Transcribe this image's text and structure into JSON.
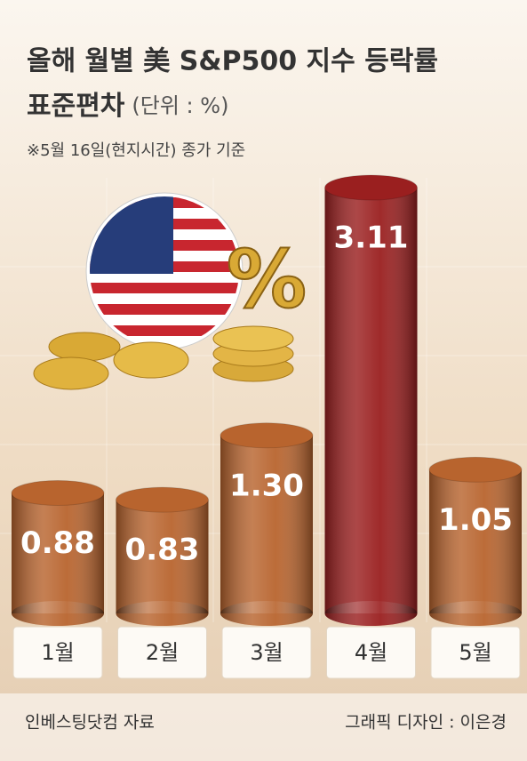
{
  "chart_data": {
    "type": "bar",
    "title": [
      "올해 월별 美 S&P500 지수 등락률",
      "표준편차"
    ],
    "unit": "(단위 : %)",
    "note": "※5월 16일(현지시간) 종가 기준",
    "categories": [
      "1월",
      "2월",
      "3월",
      "4월",
      "5월"
    ],
    "values": [
      0.88,
      0.83,
      1.3,
      3.11,
      1.05
    ],
    "value_labels": [
      "0.88",
      "0.83",
      "1.30",
      "3.11",
      "1.05"
    ],
    "colors": [
      "#b8642e",
      "#b8642e",
      "#b8642e",
      "#9a1f1f",
      "#b8642e"
    ],
    "source": "인베스팅닷컴 자료",
    "credit": "그래픽 디자인 : 이은경"
  }
}
